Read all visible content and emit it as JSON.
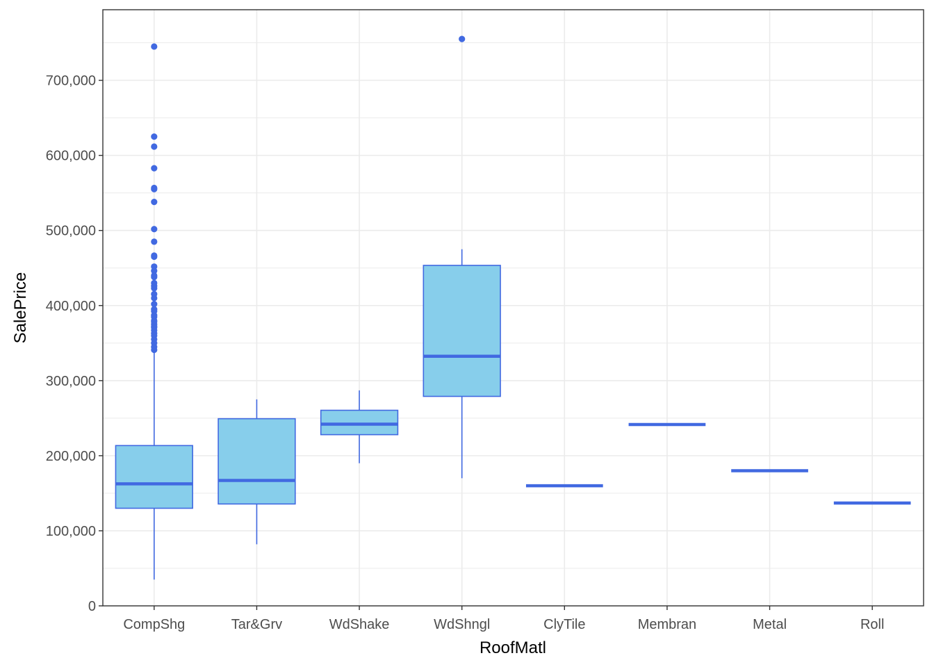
{
  "chart_data": {
    "type": "box",
    "title": "",
    "xlabel": "RoofMatl",
    "ylabel": "SalePrice",
    "ylim": [
      0,
      794000
    ],
    "grid": true,
    "categories": [
      "CompShg",
      "Tar&Grv",
      "WdShake",
      "WdShngl",
      "ClyTile",
      "Membran",
      "Metal",
      "Roll"
    ],
    "y_ticks": [
      0,
      100000,
      200000,
      300000,
      400000,
      500000,
      600000,
      700000
    ],
    "y_tick_labels": [
      "0",
      "100,000",
      "200,000",
      "300,000",
      "400,000",
      "500,000",
      "600,000",
      "700,000"
    ],
    "boxes": [
      {
        "category": "CompShg",
        "lower": 35000,
        "q1": 130000,
        "median": 162500,
        "q3": 213500,
        "upper": 340000,
        "outliers": [
          745000,
          625000,
          611700,
          582900,
          556600,
          555000,
          538000,
          501800,
          485000,
          466500,
          465000,
          451900,
          446300,
          440000,
          438000,
          430000,
          426000,
          423000,
          415300,
          410000,
          402000,
          395000,
          392500,
          387000,
          385000,
          380000,
          378500,
          375000,
          372500,
          370900,
          367000,
          363000,
          360000,
          355000,
          350000,
          345000,
          341000
        ]
      },
      {
        "category": "Tar&Grv",
        "lower": 82000,
        "q1": 135700,
        "median": 167000,
        "q3": 249300,
        "upper": 275000,
        "outliers": []
      },
      {
        "category": "WdShake",
        "lower": 190000,
        "q1": 228000,
        "median": 242000,
        "q3": 260500,
        "upper": 287000,
        "outliers": []
      },
      {
        "category": "WdShngl",
        "lower": 170000,
        "q1": 279000,
        "median": 332500,
        "q3": 453500,
        "upper": 475000,
        "outliers": [
          755000
        ]
      },
      {
        "category": "ClyTile",
        "lower": 160000,
        "q1": 160000,
        "median": 160000,
        "q3": 160000,
        "upper": 160000,
        "outliers": []
      },
      {
        "category": "Membran",
        "lower": 241500,
        "q1": 241500,
        "median": 241500,
        "q3": 241500,
        "upper": 241500,
        "outliers": []
      },
      {
        "category": "Metal",
        "lower": 180000,
        "q1": 180000,
        "median": 180000,
        "q3": 180000,
        "upper": 180000,
        "outliers": []
      },
      {
        "category": "Roll",
        "lower": 137000,
        "q1": 137000,
        "median": 137000,
        "q3": 137000,
        "upper": 137000,
        "outliers": []
      }
    ],
    "colors": {
      "box_fill": "#87ceeb",
      "box_line": "#4169e1",
      "grid": "#ebebeb",
      "panel_border": "#333333",
      "tick_label": "#4d4d4d"
    }
  }
}
